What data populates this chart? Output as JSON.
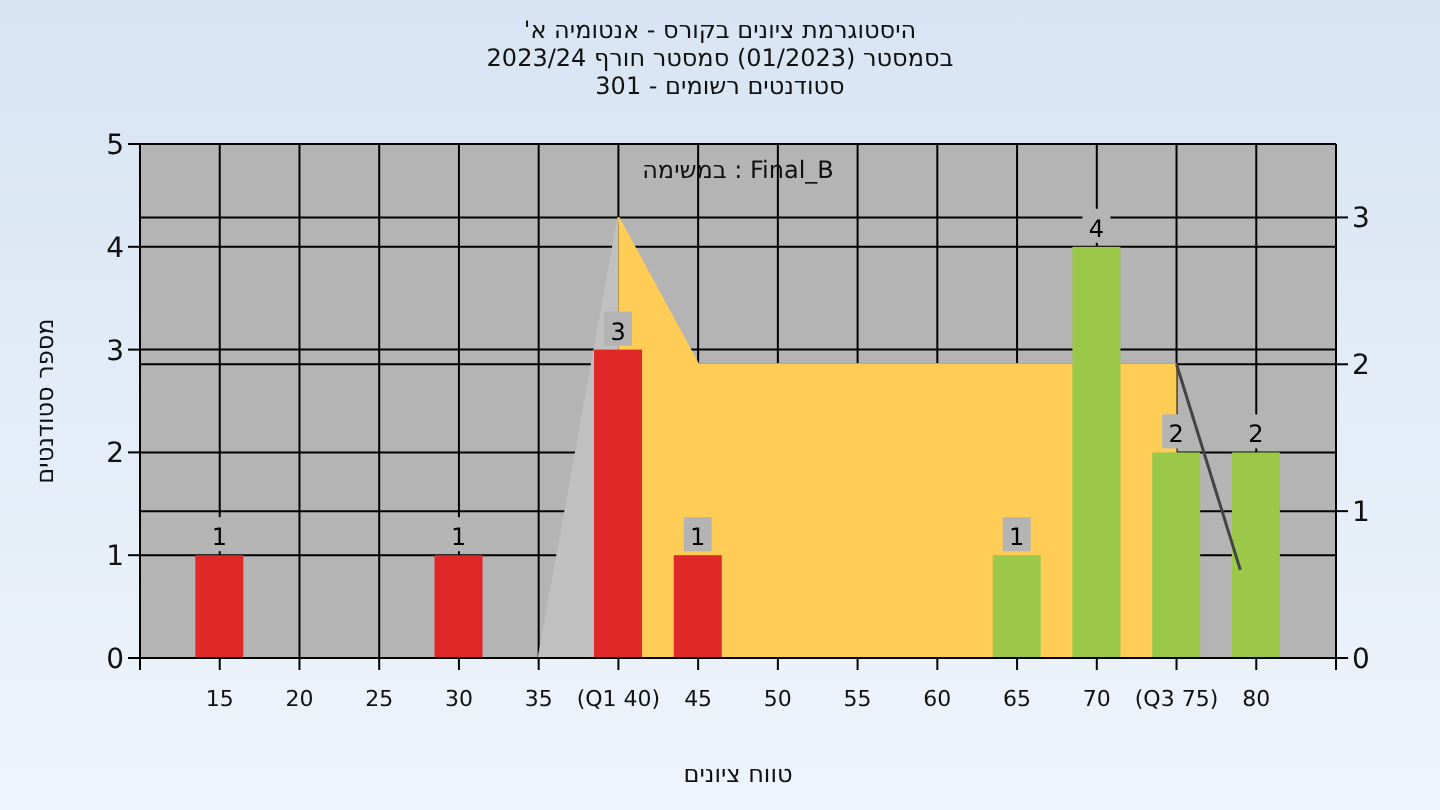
{
  "chart_data": {
    "type": "bar",
    "title": "'היסטוגרמת ציונים בקורס - אנטומיה א\nבסמסטר  (01/2023)  סמסטר חורף 2023/24\n301 - סטודנטים רשומים",
    "xlabel": "טווח ציונים",
    "ylabel": "מספר סטודנטים",
    "annotations": [
      "במשימה : Final_B"
    ],
    "x": [
      15,
      30,
      40,
      45,
      65,
      70,
      75,
      80
    ],
    "series": [
      {
        "type": "area",
        "axis": "y2",
        "x": [
          35,
          40
        ],
        "values": [
          0,
          3
        ],
        "color": "#c0c0c0"
      },
      {
        "type": "area",
        "axis": "y2",
        "x": [
          40,
          45,
          75
        ],
        "values": [
          3,
          2,
          2
        ],
        "color": "#ffcc55"
      },
      {
        "type": "line",
        "axis": "y2",
        "x": [
          75,
          79
        ],
        "values": [
          2,
          0.6
        ],
        "color": "#444444"
      },
      {
        "values": [
          1,
          1,
          3,
          1,
          1,
          4,
          2,
          2
        ],
        "value_labels": [
          "1",
          "1",
          "3",
          "1",
          "1",
          "4",
          "2",
          "2"
        ],
        "colors": [
          "#e02828",
          "#e02828",
          "#e02828",
          "#e02828",
          "#9cc84a",
          "#9cc84a",
          "#9cc84a",
          "#9cc84a"
        ]
      }
    ],
    "grid": true,
    "marker": "none",
    "xlim": [
      10,
      85
    ],
    "xticks": [
      {
        "value": 10,
        "label": null
      },
      15,
      20,
      25,
      30,
      35,
      {
        "value": 40,
        "label": "(Q1 40)"
      },
      45,
      50,
      55,
      60,
      65,
      70,
      {
        "value": 75,
        "label": "(Q3 75)"
      },
      80,
      {
        "value": 85,
        "label": null
      }
    ],
    "ylim": [
      0,
      5
    ],
    "yticks": [
      0,
      1,
      2,
      3,
      4,
      5
    ],
    "y2lim": [
      0,
      3.5
    ],
    "y2ticks": [
      0,
      1,
      2,
      3
    ]
  }
}
